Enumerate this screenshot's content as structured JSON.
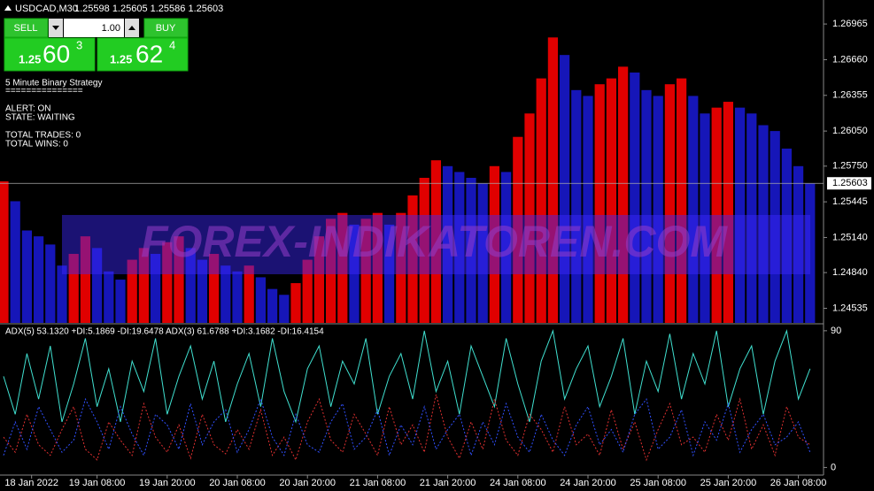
{
  "header": {
    "symbol": "USDCAD,M30",
    "quote": "1.25598 1.25605 1.25586 1.25603"
  },
  "trade_panel": {
    "sell": "SELL",
    "buy": "BUY",
    "lot": "1.00",
    "bid": {
      "prefix": "1.25",
      "big": "60",
      "small": "3"
    },
    "ask": {
      "prefix": "1.25",
      "big": "62",
      "small": "4"
    }
  },
  "strategy": {
    "title": "5 Minute Binary Strategy",
    "divider": "===============",
    "lines": [
      "ALERT: ON",
      "STATE: WAITING",
      "TOTAL TRADES: 0",
      "TOTAL WINS: 0"
    ]
  },
  "watermark": "FOREX-INDIKATOREN.COM",
  "chart_data": [
    {
      "type": "bar",
      "up_color": "#e00000",
      "down_color": "#1616b8",
      "xlim": [
        0,
        70
      ],
      "ylim": [
        1.2441,
        1.2717
      ],
      "yticks": [
        1.26965,
        {
          "value": 1.2666,
          "label": "1.26660"
        },
        1.26355,
        {
          "value": 1.2605,
          "label": "1.26050"
        },
        {
          "value": 1.2575,
          "label": "1.25750"
        },
        1.25445,
        {
          "value": 1.2514,
          "label": "1.25140"
        },
        {
          "value": 1.2484,
          "label": "1.24840"
        },
        1.24535
      ],
      "last_price": 1.25603,
      "values": [
        1.2562,
        1.2545,
        1.252,
        1.2515,
        1.2508,
        1.249,
        1.25,
        1.2515,
        1.2505,
        1.2485,
        1.2478,
        1.2495,
        1.2505,
        1.25,
        1.251,
        1.2515,
        1.2505,
        1.2495,
        1.25,
        1.249,
        1.2485,
        1.249,
        1.248,
        1.247,
        1.2465,
        1.2475,
        1.2495,
        1.2515,
        1.253,
        1.2535,
        1.2525,
        1.253,
        1.2535,
        1.2525,
        1.2535,
        1.255,
        1.2565,
        1.258,
        1.2575,
        1.257,
        1.2565,
        1.256,
        1.2575,
        1.257,
        1.26,
        1.262,
        1.265,
        1.2685,
        1.267,
        1.264,
        1.2635,
        1.2645,
        1.265,
        1.266,
        1.2655,
        1.264,
        1.2635,
        1.2645,
        1.265,
        1.2635,
        1.262,
        1.2625,
        1.263,
        1.2625,
        1.262,
        1.261,
        1.2605,
        1.259,
        1.2575,
        1.256
      ]
    },
    {
      "type": "line",
      "title": "ADX(5) 53.1320 +DI:5.1869 -DI:19.6478 ADX(3) 61.6788 +DI:3.1682 -DI:16.4154",
      "xlim": [
        0,
        70
      ],
      "ylim": [
        -5,
        94
      ],
      "yticks": [
        90,
        0
      ],
      "xticks": [
        {
          "value": 2.4,
          "label": "18 Jan 2022"
        },
        {
          "value": 8,
          "label": "19 Jan 08:00"
        },
        {
          "value": 14,
          "label": "19 Jan 20:00"
        },
        {
          "value": 20,
          "label": "20 Jan 08:00"
        },
        {
          "value": 26,
          "label": "20 Jan 20:00"
        },
        {
          "value": 32,
          "label": "21 Jan 08:00"
        },
        {
          "value": 38,
          "label": "21 Jan 20:00"
        },
        {
          "value": 44,
          "label": "24 Jan 08:00"
        },
        {
          "value": 50,
          "label": "24 Jan 20:00"
        },
        {
          "value": 56,
          "label": "25 Jan 08:00"
        },
        {
          "value": 62,
          "label": "25 Jan 20:00"
        },
        {
          "value": 68,
          "label": "26 Jan 08:00"
        }
      ],
      "series": [
        {
          "color": "#40e0d0",
          "dashed": false,
          "values": [
            60,
            35,
            75,
            45,
            80,
            30,
            55,
            85,
            40,
            65,
            30,
            70,
            50,
            85,
            35,
            60,
            80,
            45,
            70,
            30,
            55,
            75,
            40,
            85,
            50,
            30,
            65,
            80,
            40,
            70,
            55,
            85,
            35,
            60,
            75,
            45,
            90,
            50,
            70,
            35,
            80,
            60,
            40,
            85,
            55,
            30,
            70,
            90,
            45,
            65,
            80,
            40,
            60,
            85,
            35,
            70,
            50,
            88,
            45,
            75,
            55,
            90,
            40,
            65,
            80,
            35,
            70,
            90,
            45,
            65
          ]
        },
        {
          "color": "#e03030",
          "dashed": true,
          "values": [
            20,
            10,
            35,
            15,
            8,
            25,
            40,
            12,
            5,
            30,
            18,
            8,
            42,
            20,
            10,
            28,
            6,
            35,
            15,
            9,
            25,
            12,
            38,
            8,
            20,
            5,
            30,
            45,
            18,
            10,
            35,
            22,
            8,
            40,
            15,
            28,
            10,
            48,
            20,
            6,
            30,
            12,
            45,
            18,
            8,
            35,
            25,
            10,
            40,
            15,
            22,
            8,
            38,
            12,
            30,
            5,
            25,
            42,
            15,
            20,
            10,
            35,
            18,
            45,
            12,
            28,
            8,
            40,
            20,
            15
          ]
        },
        {
          "color": "#3050ff",
          "dashed": true,
          "values": [
            8,
            30,
            12,
            40,
            25,
            10,
            18,
            45,
            30,
            12,
            40,
            22,
            8,
            35,
            28,
            12,
            42,
            15,
            30,
            38,
            10,
            25,
            45,
            20,
            8,
            35,
            15,
            10,
            30,
            42,
            12,
            20,
            38,
            8,
            28,
            15,
            40,
            12,
            25,
            35,
            8,
            30,
            15,
            42,
            20,
            10,
            35,
            18,
            8,
            28,
            40,
            15,
            25,
            10,
            35,
            45,
            12,
            20,
            38,
            8,
            30,
            18,
            42,
            10,
            25,
            35,
            15,
            20,
            30,
            10
          ]
        }
      ]
    }
  ]
}
